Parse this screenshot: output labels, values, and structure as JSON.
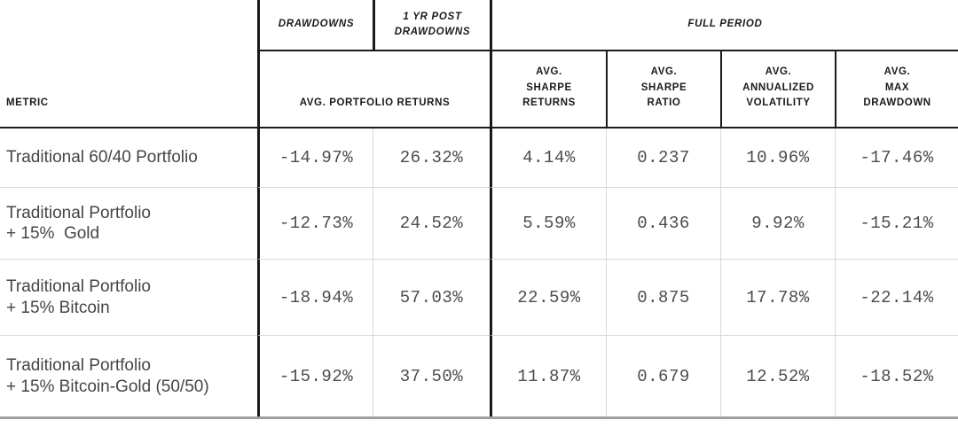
{
  "chart_data": {
    "type": "table",
    "group_headers": [
      {
        "label": "DRAWDOWNS",
        "span": 1
      },
      {
        "label": "1 YR POST\nDRAWDOWNS",
        "span": 1
      },
      {
        "label": "FULL PERIOD",
        "span": 4
      }
    ],
    "column_headers": {
      "metric": "METRIC",
      "portfolio_returns": "AVG. PORTFOLIO RETURNS",
      "sharpe_returns": "AVG.\nSHARPE\nRETURNS",
      "sharpe_ratio": "AVG.\nSHARPE\nRATIO",
      "annualized_volatility": "AVG.\nANNUALIZED\nVOLATILITY",
      "max_drawdown": "AVG.\nMAX\nDRAWDOWN"
    },
    "rows": [
      {
        "metric": "Traditional 60/40 Portfolio",
        "values": [
          "-14.97%",
          "26.32%",
          "4.14%",
          "0.237",
          "10.96%",
          "-17.46%"
        ]
      },
      {
        "metric": "Traditional Portfolio\n+ 15%  Gold",
        "values": [
          "-12.73%",
          "24.52%",
          "5.59%",
          "0.436",
          "9.92%",
          "-15.21%"
        ]
      },
      {
        "metric": "Traditional Portfolio\n+ 15% Bitcoin",
        "values": [
          "-18.94%",
          "57.03%",
          "22.59%",
          "0.875",
          "17.78%",
          "-22.14%"
        ]
      },
      {
        "metric": "Traditional Portfolio\n+ 15% Bitcoin-Gold (50/50)",
        "values": [
          "-15.92%",
          "37.50%",
          "11.87%",
          "0.679",
          "12.52%",
          "-18.52%"
        ]
      }
    ],
    "layout": {
      "grid": "on",
      "legend": "none"
    }
  },
  "colors": {
    "rule_dark": "#1a1a1a",
    "rule_light": "#d9d9d9",
    "rule_bottom": "#9e9e9e",
    "text_header": "#1a1a1a",
    "text_body": "#4c4c4c",
    "background": "#ffffff"
  }
}
